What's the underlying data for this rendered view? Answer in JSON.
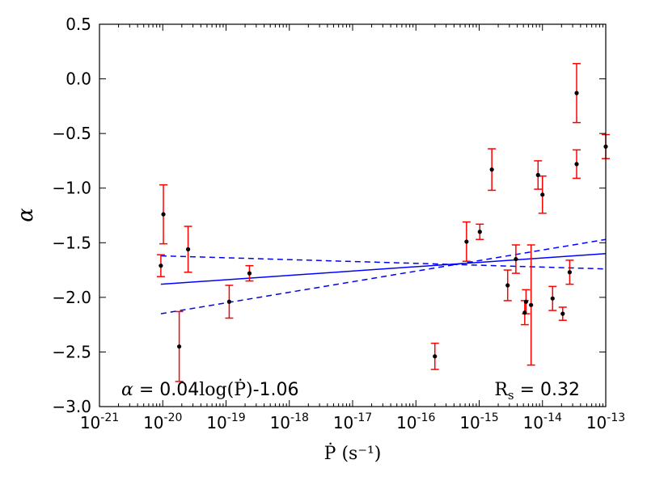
{
  "chart_data": {
    "type": "scatter",
    "title": "",
    "xlabel": "Ṗ (s⁻¹)",
    "ylabel": "α",
    "x_scale": "log10",
    "xlim_log10": [
      -21,
      -13
    ],
    "ylim": [
      -3.0,
      0.5
    ],
    "x_ticks": [
      {
        "exp": -21,
        "base": "10",
        "sup": "-21"
      },
      {
        "exp": -20,
        "base": "10",
        "sup": "-20"
      },
      {
        "exp": -19,
        "base": "10",
        "sup": "-19"
      },
      {
        "exp": -18,
        "base": "10",
        "sup": "-18"
      },
      {
        "exp": -17,
        "base": "10",
        "sup": "-17"
      },
      {
        "exp": -16,
        "base": "10",
        "sup": "-16"
      },
      {
        "exp": -15,
        "base": "10",
        "sup": "-15"
      },
      {
        "exp": -14,
        "base": "10",
        "sup": "-14"
      },
      {
        "exp": -13,
        "base": "10",
        "sup": "-13"
      }
    ],
    "y_ticks": [
      {
        "value": 0.5,
        "label": "0.5"
      },
      {
        "value": 0.0,
        "label": "0.0"
      },
      {
        "value": -0.5,
        "label": "−0.5"
      },
      {
        "value": -1.0,
        "label": "−1.0"
      },
      {
        "value": -1.5,
        "label": "−1.5"
      },
      {
        "value": -2.0,
        "label": "−2.0"
      },
      {
        "value": -2.5,
        "label": "−2.5"
      },
      {
        "value": -3.0,
        "label": "−3.0"
      }
    ],
    "points": [
      {
        "logx": -20.03,
        "y": -1.71,
        "err": 0.1
      },
      {
        "logx": -19.99,
        "y": -1.24,
        "err": 0.27
      },
      {
        "logx": -19.6,
        "y": -1.56,
        "err": 0.21
      },
      {
        "logx": -19.74,
        "y": -2.45,
        "err": 0.32
      },
      {
        "logx": -18.95,
        "y": -2.04,
        "err": 0.15
      },
      {
        "logx": -18.63,
        "y": -1.78,
        "err": 0.07
      },
      {
        "logx": -15.7,
        "y": -2.54,
        "err": 0.12
      },
      {
        "logx": -15.2,
        "y": -1.49,
        "err": 0.18
      },
      {
        "logx": -14.99,
        "y": -1.4,
        "err": 0.07
      },
      {
        "logx": -14.8,
        "y": -0.83,
        "err": 0.19
      },
      {
        "logx": -14.55,
        "y": -1.89,
        "err": 0.14
      },
      {
        "logx": -14.42,
        "y": -1.65,
        "err": 0.13
      },
      {
        "logx": -14.28,
        "y": -2.14,
        "err": 0.11
      },
      {
        "logx": -14.26,
        "y": -2.04,
        "err": 0.11
      },
      {
        "logx": -14.18,
        "y": -2.07,
        "err": 0.55
      },
      {
        "logx": -14.07,
        "y": -0.88,
        "err": 0.13
      },
      {
        "logx": -14.0,
        "y": -1.06,
        "err": 0.17
      },
      {
        "logx": -13.84,
        "y": -2.01,
        "err": 0.11
      },
      {
        "logx": -13.68,
        "y": -2.15,
        "err": 0.06
      },
      {
        "logx": -13.57,
        "y": -1.77,
        "err": 0.11
      },
      {
        "logx": -13.46,
        "y": -0.13,
        "err": 0.27
      },
      {
        "logx": -13.46,
        "y": -0.78,
        "err": 0.13
      },
      {
        "logx": -13.0,
        "y": -0.62,
        "err": 0.11
      }
    ],
    "fit": {
      "slope": 0.04,
      "intercept": -1.06,
      "x_range_log10": [
        -20.03,
        -13.0
      ]
    },
    "band_upper": {
      "x_range_log10": [
        -20.03,
        -13.0
      ],
      "y_range": [
        -2.15,
        -1.47
      ]
    },
    "band_lower": {
      "x_range_log10": [
        -20.03,
        -13.0
      ],
      "y_range": [
        -1.62,
        -1.74
      ]
    },
    "colors": {
      "points": "#000000",
      "errorbars": "#ff0000",
      "fit": "#0000ff",
      "axes": "#000000"
    }
  },
  "annotations": {
    "equation": {
      "alpha": "α",
      "eq": " = ",
      "coef": "0.04",
      "log": "log(Ṗ)",
      "rest": "-1.06"
    },
    "correlation": {
      "label_main": "R",
      "label_sub": "s",
      "eq": " = ",
      "value": "0.32"
    }
  }
}
